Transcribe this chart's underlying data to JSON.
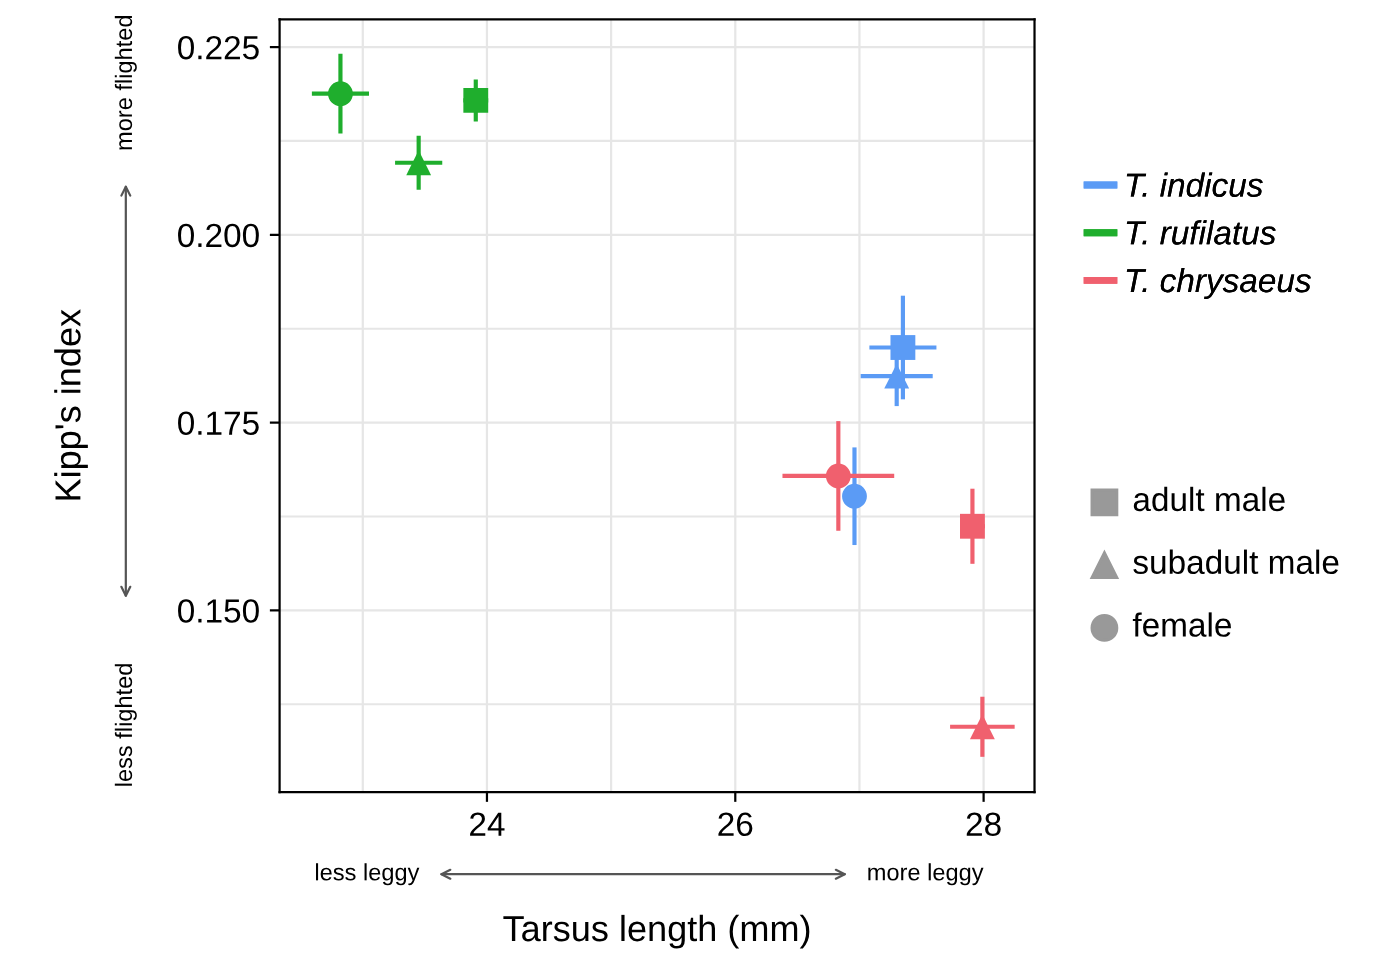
{
  "chart_data": {
    "type": "scatter",
    "xlabel": "Tarsus length (mm)",
    "ylabel": "Kipp's index",
    "xlim": [
      22.33,
      28.41
    ],
    "ylim": [
      0.1258,
      0.2287
    ],
    "xticks": [
      24,
      26,
      28
    ],
    "yticks": [
      {
        "value": 0.15,
        "label": "0.150"
      },
      {
        "value": 0.175,
        "label": "0.175"
      },
      {
        "value": 0.2,
        "label": "0.200"
      },
      {
        "value": 0.225,
        "label": "0.225"
      }
    ],
    "grid": true,
    "legend": "right",
    "annotations": [
      "more flighted",
      "less flighted",
      "less leggy",
      "more leggy",
      "adult male",
      "subadult male",
      "female"
    ],
    "series": [
      {
        "name": "T. indicus",
        "color": "#5b9bf5",
        "marker": [
          "square",
          "triangle",
          "circle"
        ],
        "x": [
          27.35,
          27.3,
          26.96
        ],
        "values": [
          0.185,
          0.1812,
          0.1652
        ],
        "errors": [
          0.0069,
          0.004,
          0.0065
        ],
        "xerrors": [
          0.27,
          0.29,
          0.08
        ]
      },
      {
        "name": "T. rufilatus",
        "color": "#1fae2d",
        "marker": [
          "square",
          "triangle",
          "circle"
        ],
        "x": [
          23.91,
          23.45,
          22.82
        ],
        "values": [
          0.2179,
          0.2096,
          0.2188
        ],
        "errors": [
          0.0028,
          0.0036,
          0.0053
        ],
        "xerrors": [
          0.1,
          0.19,
          0.23
        ]
      },
      {
        "name": "T. chrysaeus",
        "color": "#f0606e",
        "marker": [
          "square",
          "triangle",
          "circle"
        ],
        "x": [
          27.91,
          27.99,
          26.83
        ],
        "values": [
          0.1612,
          0.1345,
          0.1679
        ],
        "errors": [
          0.005,
          0.004,
          0.0073
        ],
        "xerrors": [
          0.1,
          0.26,
          0.45
        ]
      }
    ]
  }
}
